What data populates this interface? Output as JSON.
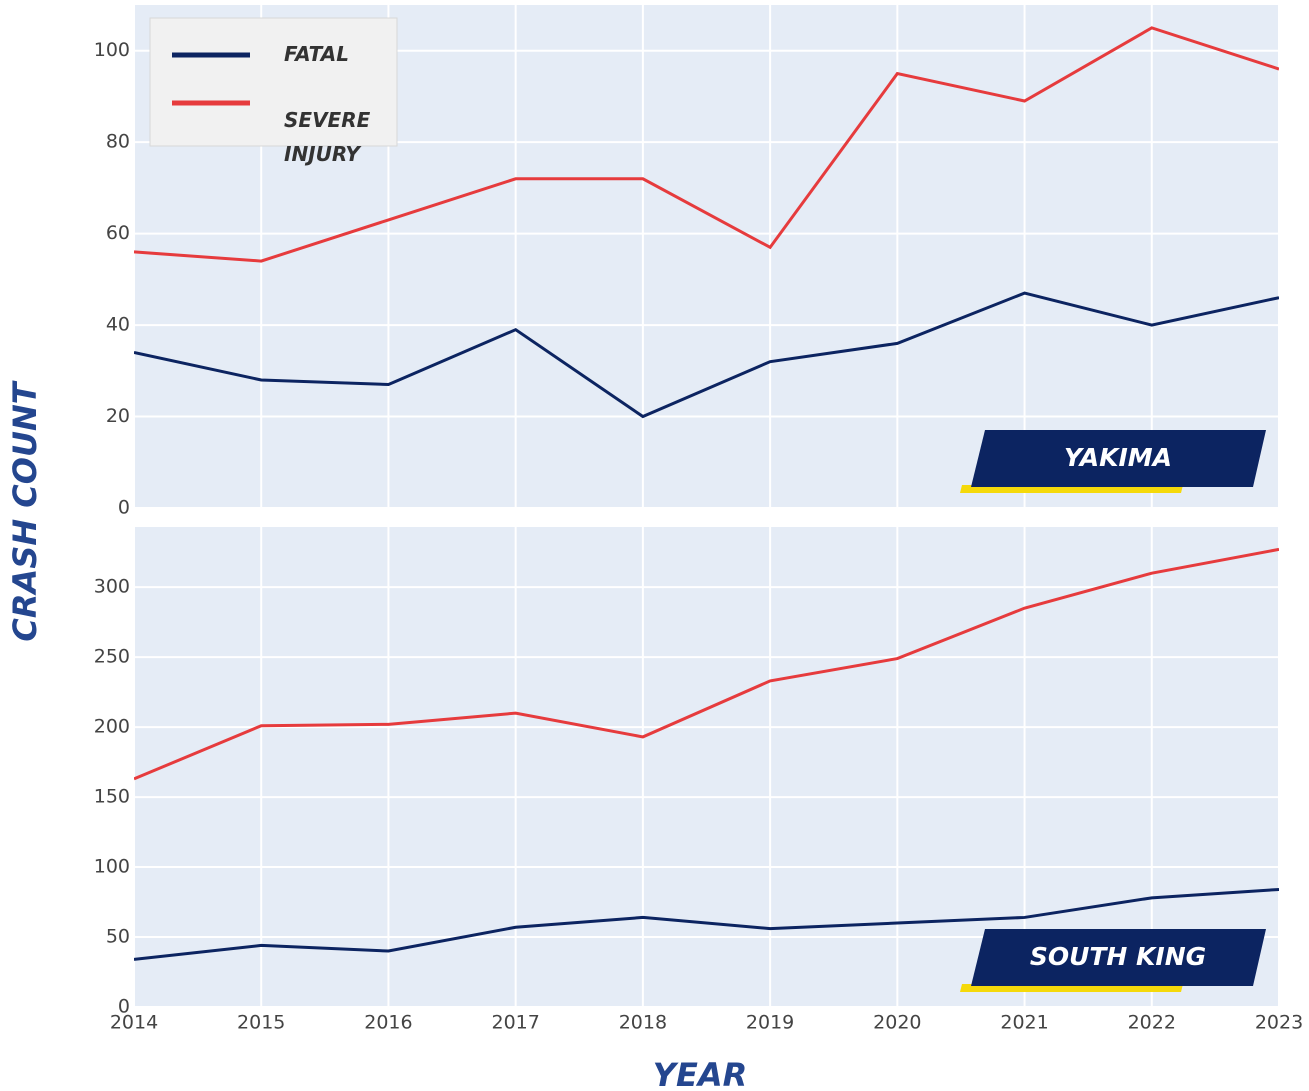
{
  "ylabel": "CRASH COUNT",
  "xlabel": "YEAR",
  "chart_data": [
    {
      "type": "line",
      "annotation": "YAKIMA",
      "x": [
        2014,
        2015,
        2016,
        2017,
        2018,
        2019,
        2020,
        2021,
        2022,
        2023
      ],
      "series": [
        {
          "name": "FATAL",
          "color": "#0c2461",
          "values": [
            34,
            28,
            27,
            39,
            20,
            32,
            36,
            47,
            40,
            46
          ]
        },
        {
          "name": "SEVERE INJURY",
          "color": "#e63b3d",
          "values": [
            56,
            54,
            63,
            72,
            72,
            57,
            95,
            89,
            105,
            96
          ]
        }
      ],
      "xlim": [
        2014,
        2023
      ],
      "ylim": [
        0,
        110
      ],
      "yticks": [
        0,
        20,
        40,
        60,
        80,
        100
      ],
      "grid": true,
      "legend": "top-left"
    },
    {
      "type": "line",
      "annotation": "SOUTH KING",
      "x": [
        2014,
        2015,
        2016,
        2017,
        2018,
        2019,
        2020,
        2021,
        2022,
        2023
      ],
      "series": [
        {
          "color": "#0c2461",
          "values": [
            34,
            44,
            40,
            57,
            64,
            56,
            60,
            64,
            78,
            84
          ]
        },
        {
          "color": "#e63b3d",
          "values": [
            163,
            201,
            202,
            210,
            193,
            233,
            249,
            285,
            310,
            327
          ]
        }
      ],
      "xlim": [
        2014,
        2023
      ],
      "xticks": [
        2014,
        2015,
        2016,
        2017,
        2018,
        2019,
        2020,
        2021,
        2022,
        2023
      ],
      "ylim": [
        0,
        343
      ],
      "yticks": [
        0,
        50,
        100,
        150,
        200,
        250,
        300
      ],
      "grid": true
    }
  ]
}
